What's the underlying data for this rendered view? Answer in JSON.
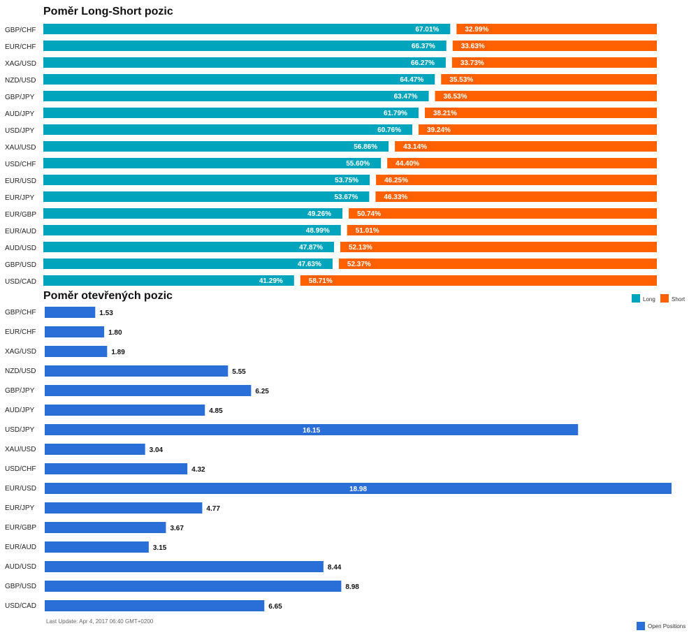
{
  "chart_data": [
    {
      "type": "bar",
      "title": "Poměr Long-Short pozic",
      "categories": [
        "GBP/CHF",
        "EUR/CHF",
        "XAG/USD",
        "NZD/USD",
        "GBP/JPY",
        "AUD/JPY",
        "USD/JPY",
        "XAU/USD",
        "USD/CHF",
        "EUR/USD",
        "EUR/JPY",
        "EUR/GBP",
        "EUR/AUD",
        "AUD/USD",
        "GBP/USD",
        "USD/CAD"
      ],
      "stacked": true,
      "orientation": "horizontal",
      "xlim": [
        0,
        100
      ],
      "series": [
        {
          "name": "Long",
          "color": "#00a4bd",
          "values": [
            67.01,
            66.37,
            66.27,
            64.47,
            63.47,
            61.79,
            60.76,
            56.86,
            55.6,
            53.75,
            53.67,
            49.26,
            48.99,
            47.87,
            47.63,
            41.29
          ],
          "labels": [
            "67.01%",
            "66.37%",
            "66.27%",
            "64.47%",
            "63.47%",
            "61.79%",
            "60.76%",
            "56.86%",
            "55.60%",
            "53.75%",
            "53.67%",
            "49.26%",
            "48.99%",
            "47.87%",
            "47.63%",
            "41.29%"
          ]
        },
        {
          "name": "Short",
          "color": "#ff6000",
          "values": [
            32.99,
            33.63,
            33.73,
            35.53,
            36.53,
            38.21,
            39.24,
            43.14,
            44.4,
            46.25,
            46.33,
            50.74,
            51.01,
            52.13,
            52.37,
            58.71
          ],
          "labels": [
            "32.99%",
            "33.63%",
            "33.73%",
            "35.53%",
            "36.53%",
            "38.21%",
            "39.24%",
            "43.14%",
            "44.40%",
            "46.25%",
            "46.33%",
            "50.74%",
            "51.01%",
            "52.13%",
            "52.37%",
            "58.71%"
          ]
        }
      ],
      "legend": "top-right"
    },
    {
      "type": "bar",
      "title": "Poměr otevřených pozic",
      "categories": [
        "GBP/CHF",
        "EUR/CHF",
        "XAG/USD",
        "NZD/USD",
        "GBP/JPY",
        "AUD/JPY",
        "USD/JPY",
        "XAU/USD",
        "USD/CHF",
        "EUR/USD",
        "EUR/JPY",
        "EUR/GBP",
        "EUR/AUD",
        "AUD/USD",
        "GBP/USD",
        "USD/CAD"
      ],
      "orientation": "horizontal",
      "xlim": [
        0,
        18.98
      ],
      "series": [
        {
          "name": "Open Positions",
          "color": "#2a6ed8",
          "values": [
            1.53,
            1.8,
            1.89,
            5.55,
            6.25,
            4.85,
            16.15,
            3.04,
            4.32,
            18.98,
            4.77,
            3.67,
            3.15,
            8.44,
            8.98,
            6.65
          ],
          "labels": [
            "1.53",
            "1.80",
            "1.89",
            "5.55",
            "6.25",
            "4.85",
            "16.15",
            "3.04",
            "4.32",
            "18.98",
            "4.77",
            "3.67",
            "3.15",
            "8.44",
            "8.98",
            "6.65"
          ]
        }
      ],
      "legend": "bottom-right"
    }
  ],
  "footer": {
    "last_update": "Last Update: Apr 4, 2017 06:40 GMT+0200"
  }
}
